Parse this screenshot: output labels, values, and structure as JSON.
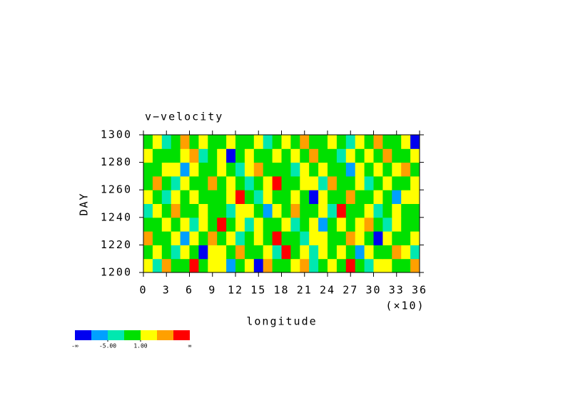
{
  "chart_data": {
    "type": "heatmap",
    "title": "v−velocity",
    "xlabel": "longitude",
    "ylabel": "DAY",
    "x_multiplier_label": "(×10)",
    "xlim": [
      0,
      36
    ],
    "xticks": [
      0,
      3,
      6,
      9,
      12,
      15,
      18,
      21,
      24,
      27,
      30,
      33,
      36
    ],
    "ylim": [
      1200,
      1300
    ],
    "yticks": [
      1200,
      1220,
      1240,
      1260,
      1280,
      1300
    ],
    "levels": [
      -8,
      -5,
      -2,
      1,
      4,
      7
    ],
    "colors": [
      "#0000f0",
      "#00a0ff",
      "#00e8b0",
      "#00e000",
      "#ffff00",
      "#ffa000",
      "#ff0000"
    ],
    "colorbar_ends": [
      "-∞",
      "∞"
    ],
    "colorbar_ticks": [
      {
        "value": -5,
        "label": "-5.00"
      },
      {
        "value": 1,
        "label": "1.00"
      }
    ],
    "z": [
      [
        2,
        -3,
        5,
        0,
        -1,
        8,
        -2,
        1,
        3,
        -6,
        0,
        2,
        -9,
        4,
        0,
        -1,
        2,
        6,
        -3,
        0,
        1,
        -2,
        9,
        0,
        -4,
        2,
        3,
        -1,
        0,
        5
      ],
      [
        -1,
        3,
        0,
        -4,
        2,
        0,
        -9,
        3,
        1,
        0,
        6,
        -2,
        0,
        1,
        -3,
        8,
        0,
        2,
        -5,
        1,
        0,
        3,
        -2,
        -7,
        1,
        0,
        -1,
        4,
        2,
        -3
      ],
      [
        4,
        0,
        -2,
        1,
        -6,
        2,
        0,
        5,
        -1,
        2,
        -3,
        0,
        3,
        -1,
        9,
        0,
        -2,
        -4,
        1,
        3,
        -1,
        0,
        5,
        2,
        0,
        -9,
        1,
        0,
        -2,
        1
      ],
      [
        0,
        -2,
        3,
        0,
        1,
        -4,
        2,
        -1,
        8,
        0,
        1,
        -5,
        2,
        0,
        -1,
        3,
        -3,
        0,
        2,
        -8,
        0,
        1,
        -2,
        3,
        6,
        0,
        -3,
        2,
        0,
        -1
      ],
      [
        -3,
        1,
        0,
        6,
        -1,
        0,
        3,
        -2,
        0,
        -4,
        2,
        1,
        0,
        -6,
        2,
        0,
        5,
        -1,
        0,
        2,
        -3,
        9,
        0,
        -1,
        2,
        -4,
        0,
        3,
        -2,
        0
      ],
      [
        2,
        0,
        -5,
        1,
        0,
        3,
        -1,
        0,
        -2,
        1,
        9,
        0,
        -3,
        2,
        0,
        -1,
        3,
        0,
        -9,
        1,
        0,
        -2,
        4,
        0,
        -1,
        2,
        0,
        -6,
        3,
        1
      ],
      [
        0,
        4,
        -1,
        -3,
        2,
        0,
        -2,
        6,
        0,
        3,
        -1,
        -4,
        0,
        1,
        8,
        -2,
        0,
        2,
        1,
        -3,
        5,
        0,
        -1,
        2,
        -5,
        0,
        1,
        0,
        -2,
        3
      ],
      [
        -2,
        0,
        1,
        3,
        -6,
        1,
        0,
        -1,
        2,
        0,
        -3,
        2,
        5,
        0,
        -1,
        0,
        -4,
        3,
        0,
        1,
        -2,
        0,
        -8,
        2,
        0,
        3,
        -1,
        1,
        4,
        0
      ],
      [
        3,
        -1,
        0,
        -2,
        1,
        5,
        -3,
        0,
        1,
        -9,
        0,
        2,
        -1,
        0,
        3,
        -2,
        1,
        0,
        4,
        -1,
        0,
        -3,
        2,
        0,
        1,
        -1,
        6,
        0,
        -2,
        2
      ],
      [
        -1,
        2,
        -3,
        0,
        4,
        -1,
        1,
        -2,
        0,
        2,
        -1,
        0,
        3,
        -5,
        0,
        1,
        -2,
        4,
        0,
        -1,
        2,
        0,
        -3,
        1,
        0,
        4,
        -2,
        0,
        1,
        -9
      ]
    ]
  }
}
